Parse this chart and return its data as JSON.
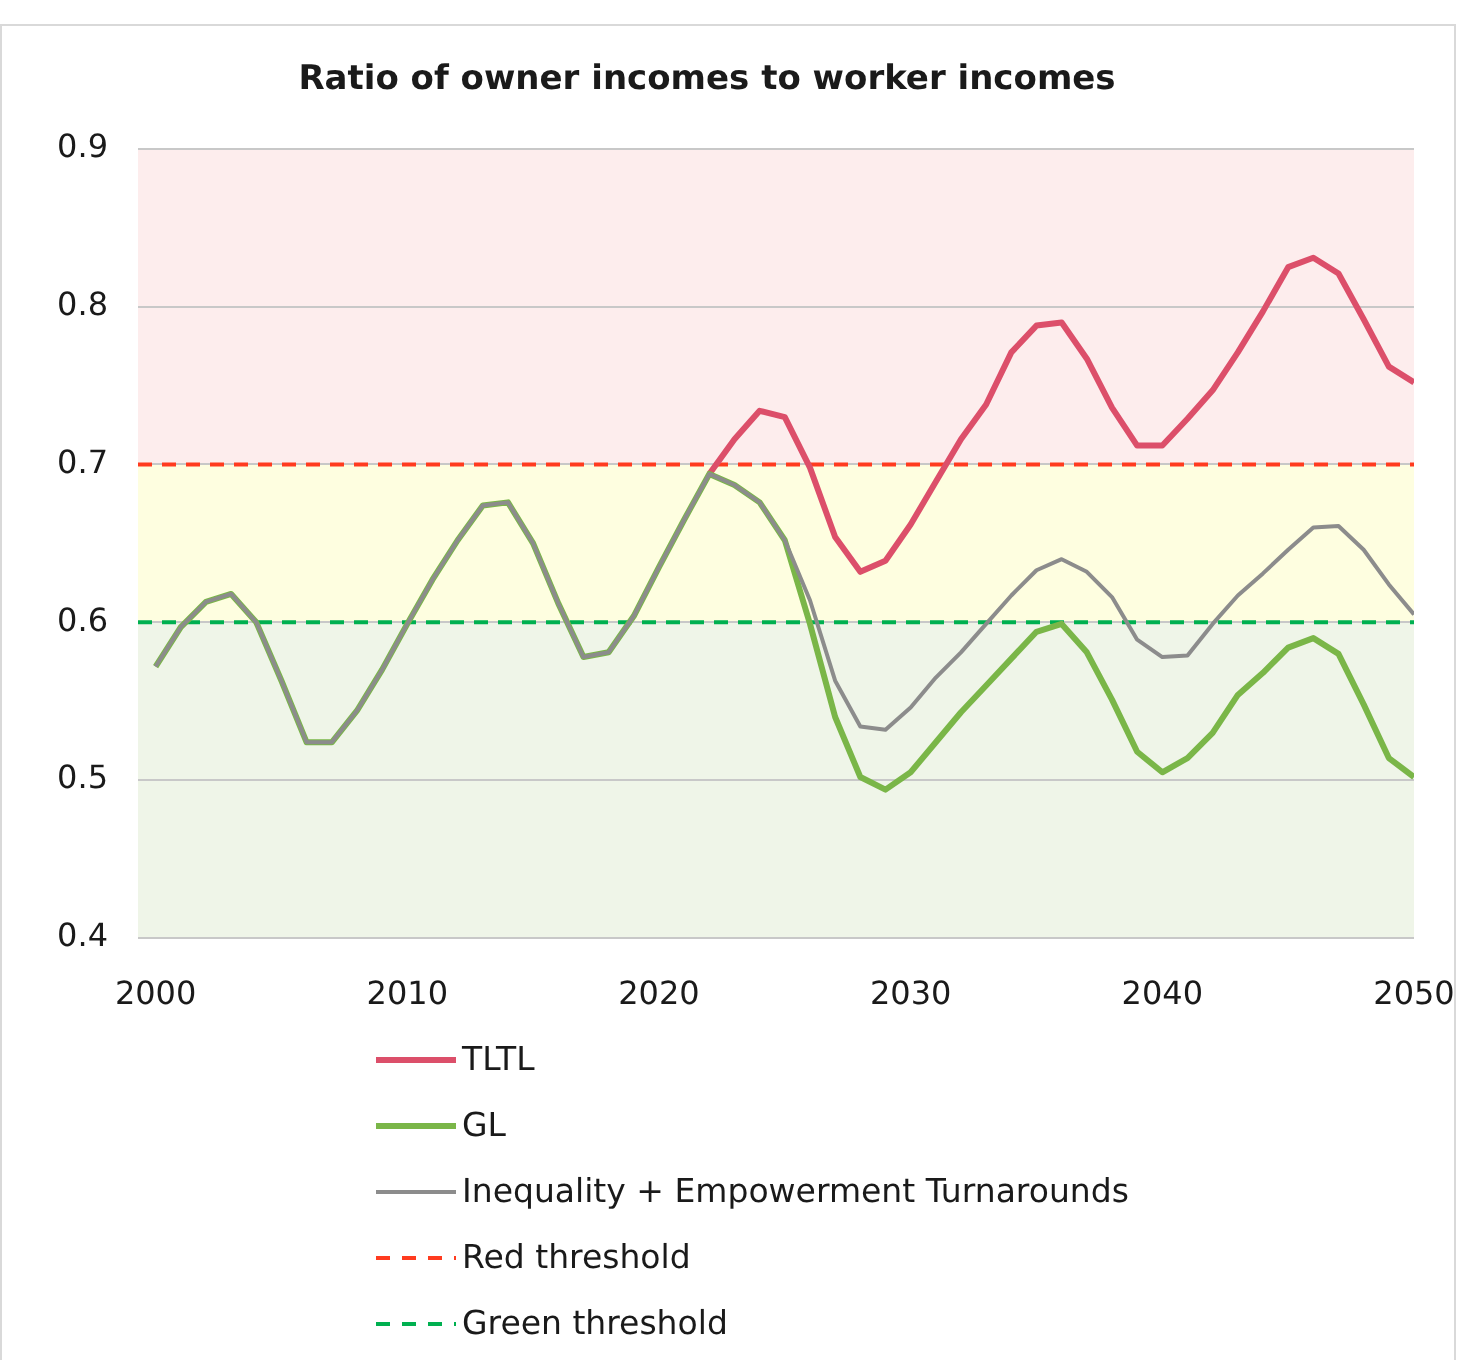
{
  "chart_data": {
    "type": "line",
    "title": "Ratio of owner incomes to worker incomes",
    "x": [
      2000,
      2001,
      2002,
      2003,
      2004,
      2005,
      2006,
      2007,
      2008,
      2009,
      2010,
      2011,
      2012,
      2013,
      2014,
      2015,
      2016,
      2017,
      2018,
      2019,
      2020,
      2021,
      2022,
      2023,
      2024,
      2025,
      2026,
      2027,
      2028,
      2029,
      2030,
      2031,
      2032,
      2033,
      2034,
      2035,
      2036,
      2037,
      2038,
      2039,
      2040,
      2041,
      2042,
      2043,
      2044,
      2045,
      2046,
      2047,
      2048,
      2049,
      2050
    ],
    "series": [
      {
        "name": "TLTL",
        "color": "#dc4f6a",
        "values": [
          null,
          null,
          null,
          null,
          null,
          null,
          null,
          null,
          null,
          null,
          null,
          null,
          null,
          null,
          null,
          null,
          null,
          null,
          null,
          null,
          null,
          null,
          0.694,
          0.716,
          0.734,
          0.73,
          0.698,
          0.654,
          0.632,
          0.639,
          0.662,
          0.689,
          0.716,
          0.738,
          0.771,
          0.788,
          0.79,
          0.767,
          0.736,
          0.712,
          0.712,
          0.729,
          0.747,
          0.771,
          0.797,
          0.825,
          0.831,
          0.821,
          0.792,
          0.762,
          0.752
        ]
      },
      {
        "name": "GL",
        "color": "#7ab648",
        "values": [
          0.572,
          0.597,
          0.613,
          0.618,
          0.6,
          0.563,
          0.524,
          0.524,
          0.544,
          0.57,
          0.599,
          0.627,
          0.652,
          0.674,
          0.676,
          0.65,
          0.612,
          0.578,
          0.581,
          0.604,
          0.635,
          0.665,
          0.694,
          0.687,
          0.676,
          0.652,
          0.599,
          0.54,
          0.502,
          0.494,
          0.505,
          0.524,
          0.543,
          0.56,
          0.577,
          0.594,
          0.599,
          0.581,
          0.551,
          0.518,
          0.505,
          0.514,
          0.53,
          0.554,
          0.568,
          0.584,
          0.59,
          0.58,
          0.548,
          0.514,
          0.502
        ]
      },
      {
        "name": "Inequality + Empowerment Turnarounds",
        "color": "#8c8c8c",
        "values": [
          0.572,
          0.597,
          0.613,
          0.618,
          0.6,
          0.563,
          0.524,
          0.524,
          0.544,
          0.57,
          0.599,
          0.627,
          0.652,
          0.674,
          0.676,
          0.65,
          0.612,
          0.578,
          0.581,
          0.604,
          0.635,
          0.665,
          0.694,
          0.687,
          0.676,
          0.652,
          0.614,
          0.563,
          0.534,
          0.532,
          0.546,
          0.565,
          0.581,
          0.599,
          0.617,
          0.633,
          0.64,
          0.632,
          0.616,
          0.589,
          0.578,
          0.579,
          0.599,
          0.617,
          0.631,
          0.646,
          0.66,
          0.661,
          0.646,
          0.624,
          0.605
        ]
      }
    ],
    "xlim": [
      1999.3,
      2050
    ],
    "xticks": [
      2000,
      2010,
      2020,
      2030,
      2040,
      2050
    ],
    "ylim": [
      0.4,
      0.9
    ],
    "yticks": [
      0.4,
      0.5,
      0.6,
      0.7,
      0.8,
      0.9
    ],
    "grid": "y",
    "legend": "bottom",
    "marker": "none",
    "line_style": "solid",
    "ref_lines": [
      {
        "axis": "y",
        "value": 0.7,
        "label": "Red threshold",
        "color": "#ff3b1f",
        "line_style": "dashed"
      },
      {
        "axis": "y",
        "value": 0.6,
        "label": "Green threshold",
        "color": "#00b050",
        "line_style": "dashed"
      }
    ],
    "bands": [
      {
        "axis": "y",
        "from": 0.7,
        "to": 0.9,
        "color": "#fdeded"
      },
      {
        "axis": "y",
        "from": 0.6,
        "to": 0.7,
        "color": "#fefee0"
      },
      {
        "axis": "y",
        "from": 0.4,
        "to": 0.6,
        "color": "#eff5e8"
      }
    ]
  }
}
